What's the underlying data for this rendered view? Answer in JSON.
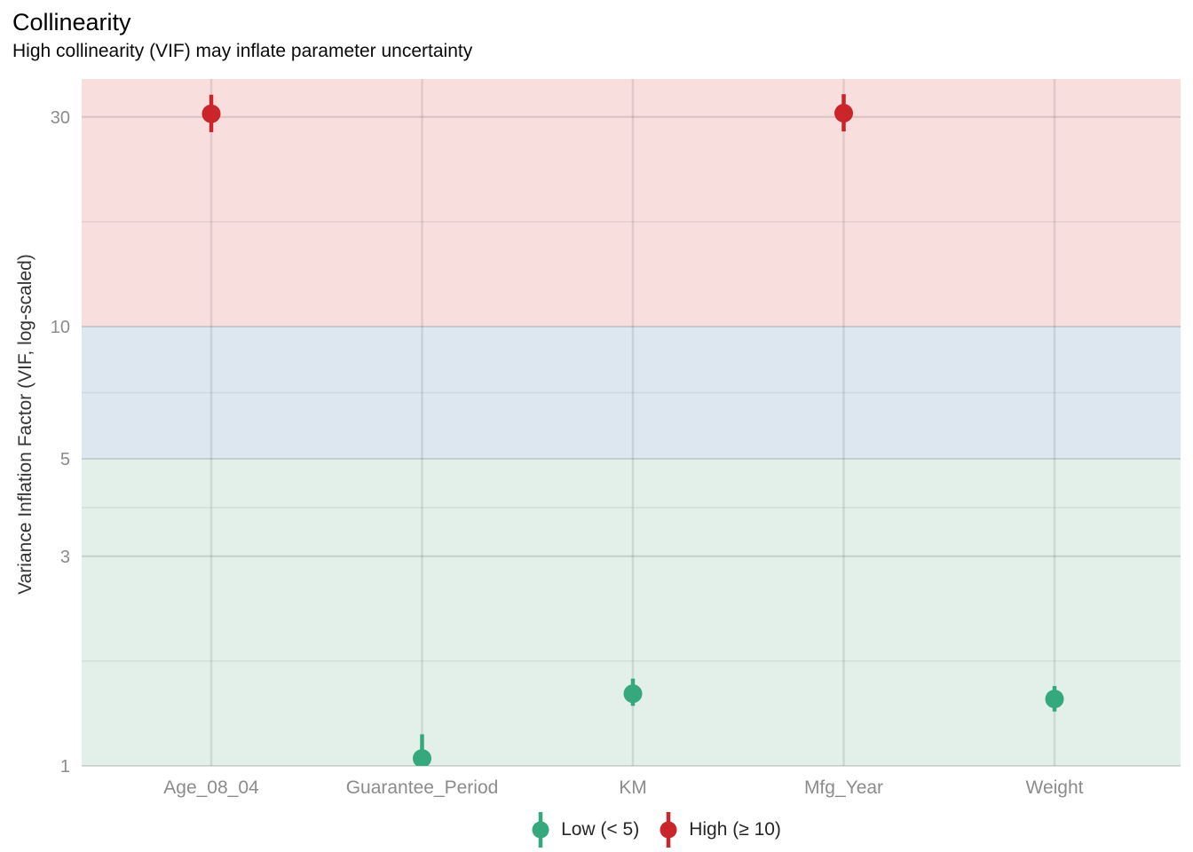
{
  "chart_data": {
    "type": "pointrange",
    "title": "Collinearity",
    "subtitle": "High collinearity (VIF) may inflate parameter uncertainty",
    "ylabel": "Variance Inflation Factor (VIF, log-scaled)",
    "xlabel": "",
    "categories": [
      "Age_08_04",
      "Guarantee_Period",
      "KM",
      "Mfg_Year",
      "Weight"
    ],
    "points": [
      {
        "variable": "Age_08_04",
        "vif": 30.5,
        "lo": 27.7,
        "hi": 33.7,
        "group": "High (≥ 10)"
      },
      {
        "variable": "Guarantee_Period",
        "vif": 1.04,
        "lo": 0.95,
        "hi": 1.18,
        "group": "Low (< 5)"
      },
      {
        "variable": "KM",
        "vif": 1.46,
        "lo": 1.37,
        "hi": 1.58,
        "group": "Low (< 5)"
      },
      {
        "variable": "Mfg_Year",
        "vif": 30.6,
        "lo": 27.8,
        "hi": 33.8,
        "group": "High (≥ 10)"
      },
      {
        "variable": "Weight",
        "vif": 1.42,
        "lo": 1.33,
        "hi": 1.52,
        "group": "Low (< 5)"
      }
    ],
    "y_axis": {
      "scale": "log10",
      "range": [
        1.0,
        36.6
      ],
      "ticks": [
        30,
        10,
        5,
        3,
        1
      ],
      "minor_ticks": [
        17.321,
        7.071,
        3.873,
        1.732
      ]
    },
    "bands": [
      {
        "name": "high",
        "from": 10,
        "to": 36.6,
        "color": "#F9DEDE"
      },
      {
        "name": "moderate",
        "from": 5,
        "to": 10,
        "color": "#DCE7F0"
      },
      {
        "name": "low",
        "from": 1.0,
        "to": 5,
        "color": "#E2F0E9"
      }
    ],
    "legend": {
      "position": "bottom",
      "items": [
        {
          "label": "Low (< 5)",
          "color": "#36A87E"
        },
        {
          "label": "High (≥ 10)",
          "color": "#C9252B"
        }
      ]
    },
    "grid": "on"
  }
}
